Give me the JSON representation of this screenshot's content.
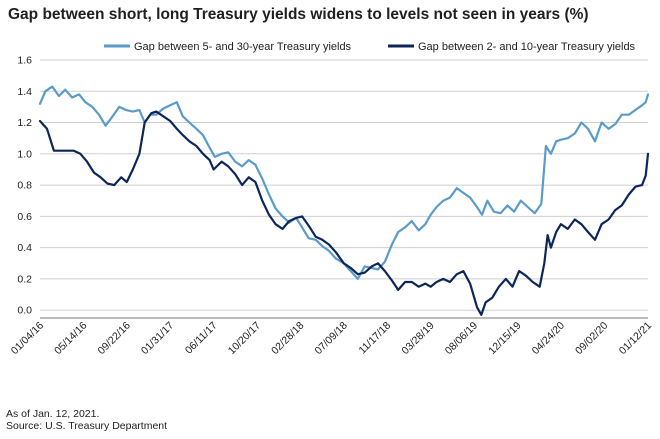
{
  "title": "Gap between short, long Treasury yields widens to levels not seen in years (%)",
  "footnotes": {
    "as_of": "As of Jan. 12, 2021.",
    "source": "Source: U.S. Treasury Department"
  },
  "colors": {
    "series_5_30": "#5b9bc9",
    "series_2_10": "#0d2659",
    "grid": "#cfcfcf",
    "axis": "#777777",
    "background": "#ffffff"
  },
  "chart_data": {
    "type": "line",
    "title": "Gap between short, long Treasury yields widens to levels not seen in years (%)",
    "xlabel": "",
    "ylabel": "",
    "x_range": [
      "2016-01-04",
      "2021-01-12"
    ],
    "ylim": [
      -0.05,
      1.6
    ],
    "y_ticks": [
      0.0,
      0.2,
      0.4,
      0.6,
      0.8,
      1.0,
      1.2,
      1.4,
      1.6
    ],
    "y_tick_labels": [
      "0.0",
      "0.2",
      "0.4",
      "0.6",
      "0.8",
      "1.0",
      "1.2",
      "1.4",
      "1.6"
    ],
    "x_tick_labels": [
      "01/04/16",
      "05/14/16",
      "09/22/16",
      "01/31/17",
      "06/11/17",
      "10/20/17",
      "02/28/18",
      "07/09/18",
      "11/17/18",
      "03/28/19",
      "08/06/19",
      "12/15/19",
      "04/24/20",
      "09/02/20",
      "01/12/21"
    ],
    "x_tick_dates": [
      "2016-01-04",
      "2016-05-14",
      "2016-09-22",
      "2017-01-31",
      "2017-06-11",
      "2017-10-20",
      "2018-02-28",
      "2018-07-09",
      "2018-11-17",
      "2019-03-28",
      "2019-08-06",
      "2019-12-15",
      "2020-04-24",
      "2020-09-02",
      "2021-01-12"
    ],
    "grid": "horizontal",
    "legend_position": "top",
    "series": [
      {
        "name": "Gap between 5- and 30-year Treasury yields",
        "color": "#5b9bc9",
        "points": [
          [
            "2016-01-04",
            1.32
          ],
          [
            "2016-01-20",
            1.4
          ],
          [
            "2016-02-10",
            1.43
          ],
          [
            "2016-03-01",
            1.37
          ],
          [
            "2016-03-20",
            1.41
          ],
          [
            "2016-04-10",
            1.36
          ],
          [
            "2016-05-01",
            1.38
          ],
          [
            "2016-05-20",
            1.33
          ],
          [
            "2016-06-10",
            1.3
          ],
          [
            "2016-06-30",
            1.25
          ],
          [
            "2016-07-20",
            1.18
          ],
          [
            "2016-08-10",
            1.24
          ],
          [
            "2016-08-30",
            1.3
          ],
          [
            "2016-09-20",
            1.28
          ],
          [
            "2016-10-10",
            1.27
          ],
          [
            "2016-10-30",
            1.28
          ],
          [
            "2016-11-15",
            1.2
          ],
          [
            "2016-12-01",
            1.25
          ],
          [
            "2016-12-20",
            1.25
          ],
          [
            "2017-01-10",
            1.29
          ],
          [
            "2017-01-31",
            1.31
          ],
          [
            "2017-02-20",
            1.33
          ],
          [
            "2017-03-10",
            1.24
          ],
          [
            "2017-03-30",
            1.2
          ],
          [
            "2017-04-20",
            1.16
          ],
          [
            "2017-05-10",
            1.12
          ],
          [
            "2017-05-30",
            1.04
          ],
          [
            "2017-06-15",
            0.98
          ],
          [
            "2017-07-05",
            1.0
          ],
          [
            "2017-07-25",
            1.01
          ],
          [
            "2017-08-15",
            0.95
          ],
          [
            "2017-09-05",
            0.92
          ],
          [
            "2017-09-25",
            0.96
          ],
          [
            "2017-10-15",
            0.93
          ],
          [
            "2017-11-05",
            0.84
          ],
          [
            "2017-11-25",
            0.74
          ],
          [
            "2017-12-15",
            0.65
          ],
          [
            "2018-01-05",
            0.6
          ],
          [
            "2018-01-25",
            0.56
          ],
          [
            "2018-02-15",
            0.59
          ],
          [
            "2018-03-05",
            0.53
          ],
          [
            "2018-03-25",
            0.46
          ],
          [
            "2018-04-15",
            0.45
          ],
          [
            "2018-05-05",
            0.41
          ],
          [
            "2018-05-25",
            0.38
          ],
          [
            "2018-06-15",
            0.33
          ],
          [
            "2018-07-09",
            0.3
          ],
          [
            "2018-07-30",
            0.25
          ],
          [
            "2018-08-20",
            0.2
          ],
          [
            "2018-09-10",
            0.28
          ],
          [
            "2018-10-01",
            0.27
          ],
          [
            "2018-10-20",
            0.26
          ],
          [
            "2018-11-10",
            0.31
          ],
          [
            "2018-12-01",
            0.42
          ],
          [
            "2018-12-20",
            0.5
          ],
          [
            "2019-01-10",
            0.53
          ],
          [
            "2019-01-30",
            0.57
          ],
          [
            "2019-02-20",
            0.51
          ],
          [
            "2019-03-12",
            0.55
          ],
          [
            "2019-03-28",
            0.61
          ],
          [
            "2019-04-15",
            0.66
          ],
          [
            "2019-05-05",
            0.7
          ],
          [
            "2019-05-25",
            0.72
          ],
          [
            "2019-06-15",
            0.78
          ],
          [
            "2019-07-05",
            0.75
          ],
          [
            "2019-07-25",
            0.72
          ],
          [
            "2019-08-15",
            0.66
          ],
          [
            "2019-08-30",
            0.61
          ],
          [
            "2019-09-15",
            0.7
          ],
          [
            "2019-10-05",
            0.63
          ],
          [
            "2019-10-25",
            0.62
          ],
          [
            "2019-11-15",
            0.67
          ],
          [
            "2019-12-05",
            0.63
          ],
          [
            "2019-12-25",
            0.7
          ],
          [
            "2020-01-15",
            0.66
          ],
          [
            "2020-02-05",
            0.62
          ],
          [
            "2020-02-25",
            0.68
          ],
          [
            "2020-03-10",
            1.05
          ],
          [
            "2020-03-25",
            1.0
          ],
          [
            "2020-04-10",
            1.08
          ],
          [
            "2020-04-24",
            1.09
          ],
          [
            "2020-05-15",
            1.1
          ],
          [
            "2020-06-05",
            1.13
          ],
          [
            "2020-06-25",
            1.2
          ],
          [
            "2020-07-15",
            1.16
          ],
          [
            "2020-08-05",
            1.08
          ],
          [
            "2020-08-25",
            1.2
          ],
          [
            "2020-09-15",
            1.16
          ],
          [
            "2020-10-05",
            1.19
          ],
          [
            "2020-10-25",
            1.25
          ],
          [
            "2020-11-15",
            1.25
          ],
          [
            "2020-12-05",
            1.28
          ],
          [
            "2020-12-25",
            1.31
          ],
          [
            "2021-01-05",
            1.33
          ],
          [
            "2021-01-12",
            1.38
          ]
        ]
      },
      {
        "name": "Gap between 2- and 10-year Treasury yields",
        "color": "#0d2659",
        "points": [
          [
            "2016-01-04",
            1.21
          ],
          [
            "2016-01-25",
            1.16
          ],
          [
            "2016-02-15",
            1.02
          ],
          [
            "2016-03-05",
            1.02
          ],
          [
            "2016-03-25",
            1.02
          ],
          [
            "2016-04-15",
            1.02
          ],
          [
            "2016-05-05",
            1.0
          ],
          [
            "2016-05-25",
            0.95
          ],
          [
            "2016-06-15",
            0.88
          ],
          [
            "2016-07-05",
            0.85
          ],
          [
            "2016-07-25",
            0.81
          ],
          [
            "2016-08-15",
            0.8
          ],
          [
            "2016-09-05",
            0.85
          ],
          [
            "2016-09-22",
            0.82
          ],
          [
            "2016-10-10",
            0.9
          ],
          [
            "2016-10-30",
            1.0
          ],
          [
            "2016-11-15",
            1.2
          ],
          [
            "2016-12-05",
            1.26
          ],
          [
            "2016-12-20",
            1.27
          ],
          [
            "2017-01-10",
            1.24
          ],
          [
            "2017-01-31",
            1.21
          ],
          [
            "2017-02-20",
            1.16
          ],
          [
            "2017-03-10",
            1.12
          ],
          [
            "2017-03-30",
            1.08
          ],
          [
            "2017-04-20",
            1.05
          ],
          [
            "2017-05-10",
            1.0
          ],
          [
            "2017-05-30",
            0.96
          ],
          [
            "2017-06-11",
            0.9
          ],
          [
            "2017-07-05",
            0.95
          ],
          [
            "2017-07-25",
            0.92
          ],
          [
            "2017-08-15",
            0.87
          ],
          [
            "2017-09-05",
            0.8
          ],
          [
            "2017-09-25",
            0.85
          ],
          [
            "2017-10-15",
            0.82
          ],
          [
            "2017-11-05",
            0.7
          ],
          [
            "2017-11-25",
            0.61
          ],
          [
            "2017-12-15",
            0.55
          ],
          [
            "2018-01-05",
            0.52
          ],
          [
            "2018-01-25",
            0.57
          ],
          [
            "2018-02-15",
            0.59
          ],
          [
            "2018-03-05",
            0.6
          ],
          [
            "2018-03-25",
            0.54
          ],
          [
            "2018-04-15",
            0.47
          ],
          [
            "2018-05-05",
            0.45
          ],
          [
            "2018-05-25",
            0.42
          ],
          [
            "2018-06-15",
            0.37
          ],
          [
            "2018-07-09",
            0.3
          ],
          [
            "2018-07-30",
            0.27
          ],
          [
            "2018-08-20",
            0.23
          ],
          [
            "2018-09-10",
            0.24
          ],
          [
            "2018-10-01",
            0.28
          ],
          [
            "2018-10-20",
            0.3
          ],
          [
            "2018-11-10",
            0.25
          ],
          [
            "2018-12-01",
            0.19
          ],
          [
            "2018-12-20",
            0.13
          ],
          [
            "2019-01-10",
            0.18
          ],
          [
            "2019-01-30",
            0.18
          ],
          [
            "2019-02-20",
            0.15
          ],
          [
            "2019-03-12",
            0.17
          ],
          [
            "2019-03-28",
            0.15
          ],
          [
            "2019-04-15",
            0.18
          ],
          [
            "2019-05-05",
            0.2
          ],
          [
            "2019-05-25",
            0.18
          ],
          [
            "2019-06-15",
            0.23
          ],
          [
            "2019-07-05",
            0.25
          ],
          [
            "2019-07-25",
            0.17
          ],
          [
            "2019-08-15",
            0.02
          ],
          [
            "2019-08-28",
            -0.03
          ],
          [
            "2019-09-10",
            0.05
          ],
          [
            "2019-09-30",
            0.08
          ],
          [
            "2019-10-20",
            0.15
          ],
          [
            "2019-11-10",
            0.2
          ],
          [
            "2019-11-30",
            0.15
          ],
          [
            "2019-12-20",
            0.25
          ],
          [
            "2020-01-10",
            0.22
          ],
          [
            "2020-01-30",
            0.18
          ],
          [
            "2020-02-20",
            0.15
          ],
          [
            "2020-03-05",
            0.3
          ],
          [
            "2020-03-15",
            0.48
          ],
          [
            "2020-03-25",
            0.4
          ],
          [
            "2020-04-10",
            0.5
          ],
          [
            "2020-04-24",
            0.55
          ],
          [
            "2020-05-15",
            0.52
          ],
          [
            "2020-06-05",
            0.58
          ],
          [
            "2020-06-25",
            0.55
          ],
          [
            "2020-07-15",
            0.5
          ],
          [
            "2020-08-05",
            0.45
          ],
          [
            "2020-08-25",
            0.55
          ],
          [
            "2020-09-15",
            0.58
          ],
          [
            "2020-10-05",
            0.64
          ],
          [
            "2020-10-25",
            0.67
          ],
          [
            "2020-11-15",
            0.74
          ],
          [
            "2020-12-05",
            0.79
          ],
          [
            "2020-12-25",
            0.8
          ],
          [
            "2021-01-05",
            0.86
          ],
          [
            "2021-01-12",
            1.0
          ]
        ]
      }
    ]
  }
}
